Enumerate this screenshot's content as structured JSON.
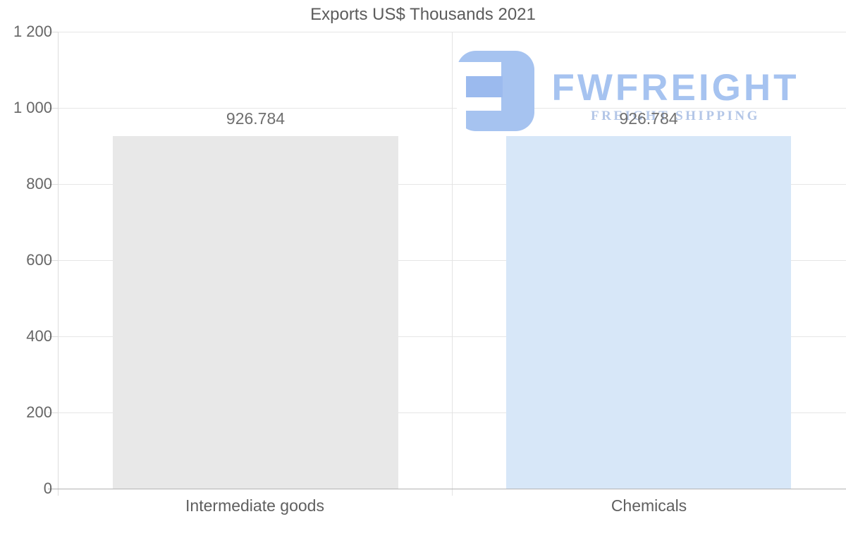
{
  "title": "Exports US$ Thousands 2021",
  "chart_data": {
    "type": "bar",
    "title": "Exports US$ Thousands 2021",
    "categories": [
      "Intermediate goods",
      "Chemicals"
    ],
    "values": [
      926.784,
      926.784
    ],
    "value_labels": [
      "926.784",
      "926.784"
    ],
    "bar_colors": [
      "#e8e8e8",
      "#d7e7f8"
    ],
    "ylim": [
      0,
      1200
    ],
    "ytick_labels": [
      "1 200",
      "1 000",
      "800",
      "600",
      "400",
      "200",
      "0"
    ],
    "xlabel": "",
    "ylabel": "",
    "grid": "horizontal gridlines on",
    "legend": "none"
  },
  "watermark": {
    "brand": "FWFREIGHT",
    "tagline": "FREIGHT SHIPPING",
    "logo_color": "#a6c3f0",
    "tagline_color": "#b3c6e7"
  },
  "colors": {
    "bar_intermediate_goods": "#e8e8e8",
    "bar_chemicals": "#d7e7f8",
    "gridline": "#e6e6e6",
    "axis_baseline": "#b3b3b3",
    "text": "#5f5f5f"
  }
}
